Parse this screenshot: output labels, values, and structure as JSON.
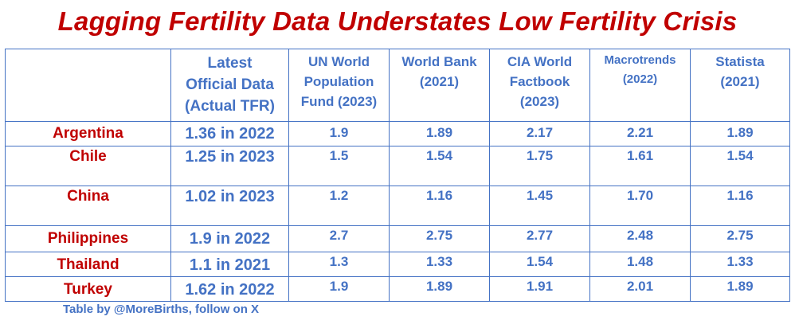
{
  "title": "Lagging Fertility Data Understates Low Fertility Crisis",
  "table": {
    "columns": [
      {
        "lines": [
          "",
          "",
          ""
        ]
      },
      {
        "lines": [
          "Latest",
          "Official Data",
          "(Actual TFR)"
        ]
      },
      {
        "lines": [
          "UN World",
          "Population",
          "Fund (2023)"
        ]
      },
      {
        "lines": [
          "World Bank",
          "(2021)",
          ""
        ]
      },
      {
        "lines": [
          "CIA World",
          "Factbook",
          "(2023)"
        ]
      },
      {
        "lines": [
          "Macrotrends",
          "(2022)",
          ""
        ]
      },
      {
        "lines": [
          "Statista",
          "(2021)",
          ""
        ]
      }
    ],
    "rows": [
      {
        "country": "Argentina",
        "latest": "1.36 in 2022",
        "un": "1.9",
        "world_bank": "1.89",
        "cia": "2.17",
        "macrotrends": "2.21",
        "statista": "1.89"
      },
      {
        "country": "Chile",
        "latest": "1.25 in 2023",
        "un": "1.5",
        "world_bank": "1.54",
        "cia": "1.75",
        "macrotrends": "1.61",
        "statista": "1.54"
      },
      {
        "country": "China",
        "latest": "1.02 in 2023",
        "un": "1.2",
        "world_bank": "1.16",
        "cia": "1.45",
        "macrotrends": "1.70",
        "statista": "1.16"
      },
      {
        "country": "Philippines",
        "latest": "1.9 in 2022",
        "un": "2.7",
        "world_bank": "2.75",
        "cia": "2.77",
        "macrotrends": "2.48",
        "statista": "2.75"
      },
      {
        "country": "Thailand",
        "latest": "1.1 in 2021",
        "un": "1.3",
        "world_bank": "1.33",
        "cia": "1.54",
        "macrotrends": "1.48",
        "statista": "1.33"
      },
      {
        "country": "Turkey",
        "latest": "1.62 in 2022",
        "un": "1.9",
        "world_bank": "1.89",
        "cia": "1.91",
        "macrotrends": "2.01",
        "statista": "1.89"
      }
    ]
  },
  "credit": "Table by @MoreBirths, follow on X",
  "colors": {
    "title": "#c00000",
    "country": "#c00000",
    "values": "#4472c4",
    "border": "#4472c4"
  }
}
